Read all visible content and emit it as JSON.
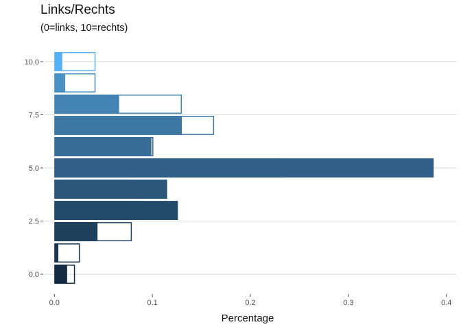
{
  "chart_data": {
    "type": "bar",
    "orientation": "horizontal",
    "title": "Links/Rechts",
    "subtitle": "(0=links, 10=rechts)",
    "xlabel": "Percentage",
    "ylabel": "",
    "xlim": [
      -0.01,
      0.41
    ],
    "ylim": [
      -0.9,
      10.9
    ],
    "x_ticks": [
      0.0,
      0.1,
      0.2,
      0.3,
      0.4
    ],
    "x_tick_labels": [
      "0.0",
      "0.1",
      "0.2",
      "0.3",
      "0.4"
    ],
    "y_ticks": [
      0,
      2.5,
      5,
      7.5,
      10
    ],
    "y_tick_labels": [
      "0.0",
      "2.5",
      "5.0",
      "7.5",
      "10.0"
    ],
    "grid": "horizontal major lines only",
    "legend": "none",
    "categories": [
      0,
      1,
      2,
      3,
      4,
      5,
      6,
      7,
      8,
      9,
      10
    ],
    "series": [
      {
        "style": "filled",
        "values": [
          0.013,
          0.004,
          0.044,
          0.126,
          0.115,
          0.387,
          0.099,
          0.13,
          0.066,
          0.011,
          0.008
        ]
      },
      {
        "style": "outline",
        "values": [
          0.021,
          0.026,
          0.079,
          0.09,
          0.078,
          0.231,
          0.101,
          0.163,
          0.13,
          0.042,
          0.042
        ]
      }
    ],
    "colors": [
      "#132b43",
      "#183650",
      "#1e405d",
      "#244b6b",
      "#2a5679",
      "#306087",
      "#366c96",
      "#3d78a5",
      "#4384b4",
      "#4990c4",
      "#56b1f7"
    ]
  }
}
